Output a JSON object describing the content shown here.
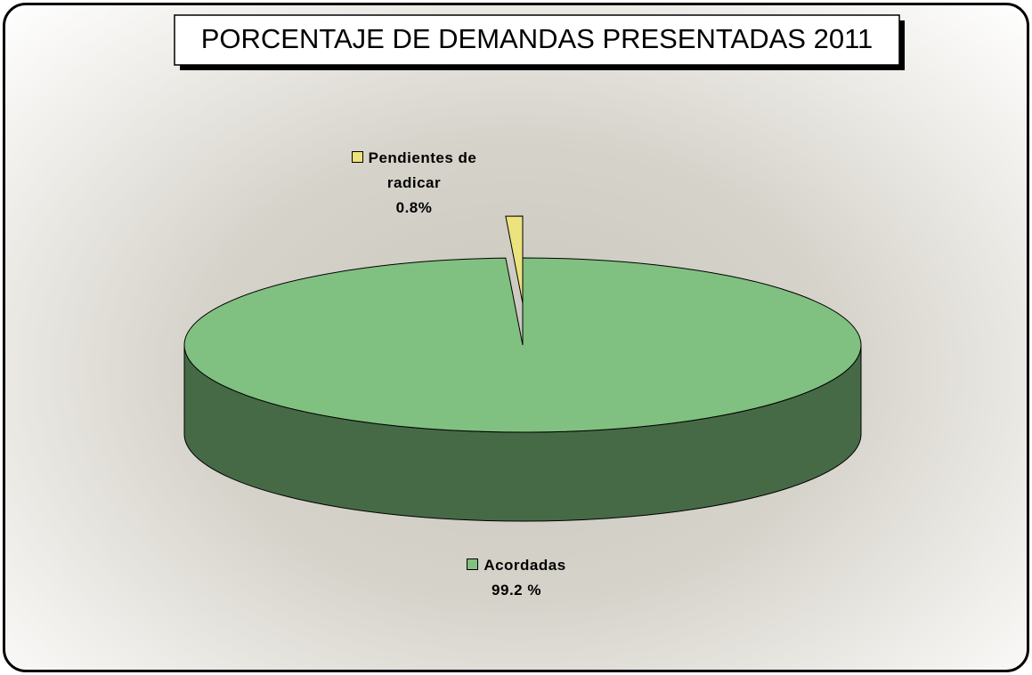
{
  "chart_data": {
    "type": "pie3d",
    "title": "PORCENTAJE DE DEMANDAS PRESENTADAS 2011",
    "categories": [
      "Pendientes de radicar",
      "Acordadas"
    ],
    "values": [
      0.8,
      99.2
    ],
    "value_labels": [
      "0.8%",
      "99.2 %"
    ],
    "colors": [
      "#ece27e",
      "#80c080"
    ]
  }
}
